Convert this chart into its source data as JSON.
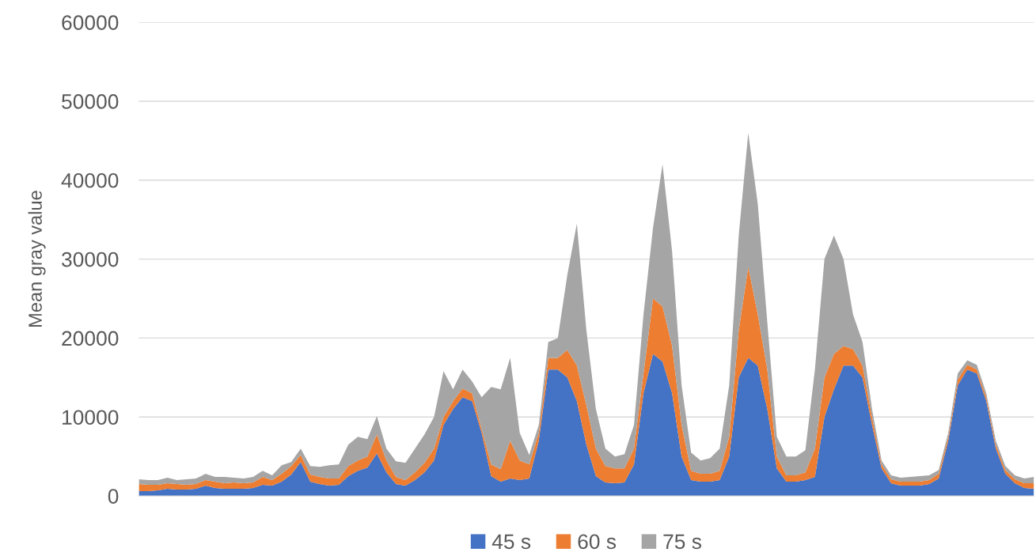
{
  "chart_data": {
    "type": "area",
    "stacked": true,
    "ylabel": "Mean gray value",
    "categories": [
      null,
      null,
      null,
      null,
      null,
      null,
      null,
      null,
      null,
      null,
      null,
      null,
      null,
      null,
      null,
      null,
      null,
      null,
      null,
      null,
      null,
      null,
      null,
      null,
      null,
      null,
      null,
      null,
      null,
      null,
      null,
      null,
      null,
      null,
      null,
      null,
      null,
      null,
      null,
      null,
      null,
      null,
      null,
      null,
      null,
      null,
      null,
      null,
      null,
      null,
      null,
      null,
      null,
      null,
      null,
      null,
      null,
      null,
      null,
      null,
      null,
      null,
      null,
      null,
      null,
      null,
      null,
      null,
      null,
      null,
      null,
      null,
      null,
      null,
      null,
      null,
      null,
      null,
      null,
      null,
      null,
      null,
      null,
      null,
      null,
      null,
      null,
      null,
      null,
      null,
      null,
      null,
      null,
      null,
      null
    ],
    "series": [
      {
        "name": "45 s",
        "color": "#4472c4",
        "values": [
          600,
          600,
          700,
          900,
          800,
          800,
          900,
          1300,
          1000,
          900,
          900,
          900,
          1000,
          1400,
          1300,
          1800,
          2700,
          4300,
          1800,
          1500,
          1300,
          1400,
          2500,
          3200,
          3600,
          5400,
          3000,
          1500,
          1300,
          2000,
          3000,
          4500,
          9000,
          11000,
          12500,
          12000,
          8000,
          2500,
          1800,
          2200,
          2000,
          2200,
          7000,
          16000,
          16000,
          15000,
          12000,
          6500,
          2500,
          1700,
          1600,
          1700,
          4000,
          13000,
          18000,
          17000,
          13000,
          5000,
          2000,
          1800,
          1800,
          2000,
          5000,
          15000,
          17500,
          16500,
          11000,
          3500,
          1800,
          1800,
          2000,
          2400,
          10000,
          13500,
          16500,
          16500,
          15000,
          9000,
          3500,
          1600,
          1300,
          1300,
          1300,
          1500,
          2200,
          7000,
          14000,
          16000,
          15500,
          12000,
          6000,
          2800,
          1600,
          1000,
          900
        ]
      },
      {
        "name": "60 s",
        "color": "#ed7d31",
        "values": [
          900,
          800,
          700,
          700,
          700,
          600,
          600,
          700,
          800,
          700,
          800,
          700,
          700,
          1000,
          700,
          1000,
          1100,
          900,
          900,
          900,
          900,
          800,
          1300,
          1300,
          1400,
          2400,
          1500,
          900,
          700,
          1000,
          1200,
          1500,
          1000,
          1000,
          1100,
          1000,
          500,
          1500,
          1600,
          4800,
          2500,
          1800,
          1000,
          1500,
          1500,
          3500,
          4500,
          5000,
          3500,
          2100,
          1900,
          1800,
          2000,
          2500,
          7000,
          7000,
          6000,
          4000,
          1200,
          1000,
          1000,
          1200,
          2500,
          6000,
          11500,
          6500,
          5000,
          1500,
          800,
          800,
          1000,
          3600,
          5000,
          4500,
          2500,
          2100,
          1500,
          1000,
          500,
          500,
          500,
          500,
          500,
          500,
          600,
          500,
          700,
          600,
          500,
          500,
          500,
          500,
          500,
          600,
          700
        ]
      },
      {
        "name": "75 s",
        "color": "#a5a5a5",
        "values": [
          600,
          600,
          600,
          700,
          500,
          700,
          700,
          800,
          600,
          800,
          600,
          600,
          700,
          800,
          600,
          1100,
          500,
          800,
          1100,
          1300,
          1700,
          1800,
          2700,
          3000,
          2200,
          2300,
          1500,
          2000,
          2200,
          3000,
          3600,
          4000,
          5800,
          1500,
          2400,
          1500,
          4000,
          9800,
          10100,
          10500,
          3500,
          1200,
          1000,
          2000,
          2500,
          9500,
          18000,
          9500,
          5000,
          2200,
          1500,
          1800,
          3000,
          7500,
          9000,
          18000,
          12000,
          5000,
          2300,
          1700,
          2000,
          2800,
          6500,
          12000,
          17000,
          14000,
          6000,
          2500,
          2400,
          2400,
          2800,
          10000,
          15000,
          15000,
          11000,
          4400,
          3000,
          1000,
          500,
          500,
          500,
          600,
          700,
          600,
          500,
          500,
          800,
          600,
          600,
          500,
          500,
          500,
          500,
          600,
          800
        ]
      }
    ],
    "ylim": [
      0,
      60000
    ],
    "yticks": [
      0,
      10000,
      20000,
      30000,
      40000,
      50000,
      60000
    ],
    "grid": "y",
    "legend": "bottom"
  }
}
